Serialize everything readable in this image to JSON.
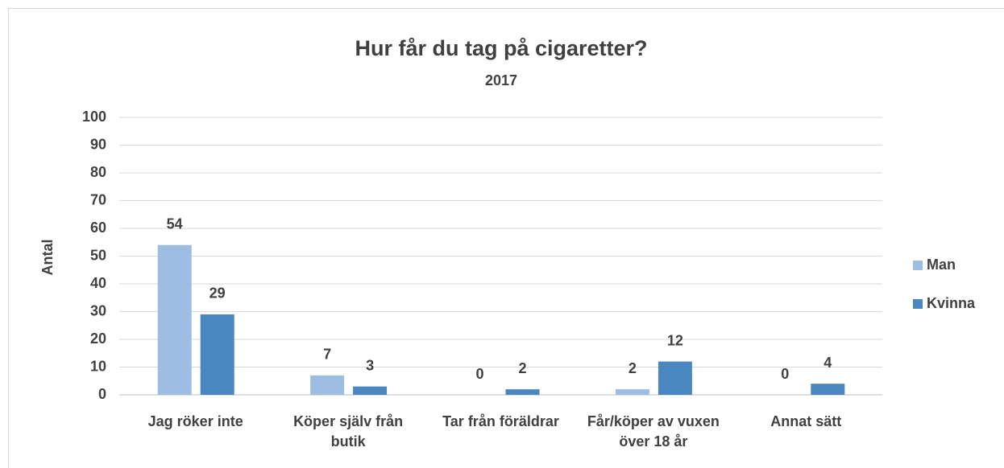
{
  "chart_data": {
    "type": "bar",
    "title": "Hur får du tag på cigaretter?",
    "subtitle": "2017",
    "y_label": "Antal",
    "categories": [
      "Jag röker inte",
      "Köper själv från butik",
      "Tar från föräldrar",
      "Får/köper av vuxen över 18 år",
      "Annat sätt"
    ],
    "series": [
      {
        "name": "Man",
        "color": "#9dbde3",
        "values": [
          54,
          7,
          0,
          2,
          0
        ]
      },
      {
        "name": "Kvinna",
        "color": "#4a86c0",
        "values": [
          29,
          3,
          2,
          12,
          4
        ]
      }
    ],
    "ylim": [
      0,
      100
    ],
    "yticks": [
      0,
      10,
      20,
      30,
      40,
      50,
      60,
      70,
      80,
      90,
      100
    ],
    "grid": true,
    "legend": "right"
  }
}
